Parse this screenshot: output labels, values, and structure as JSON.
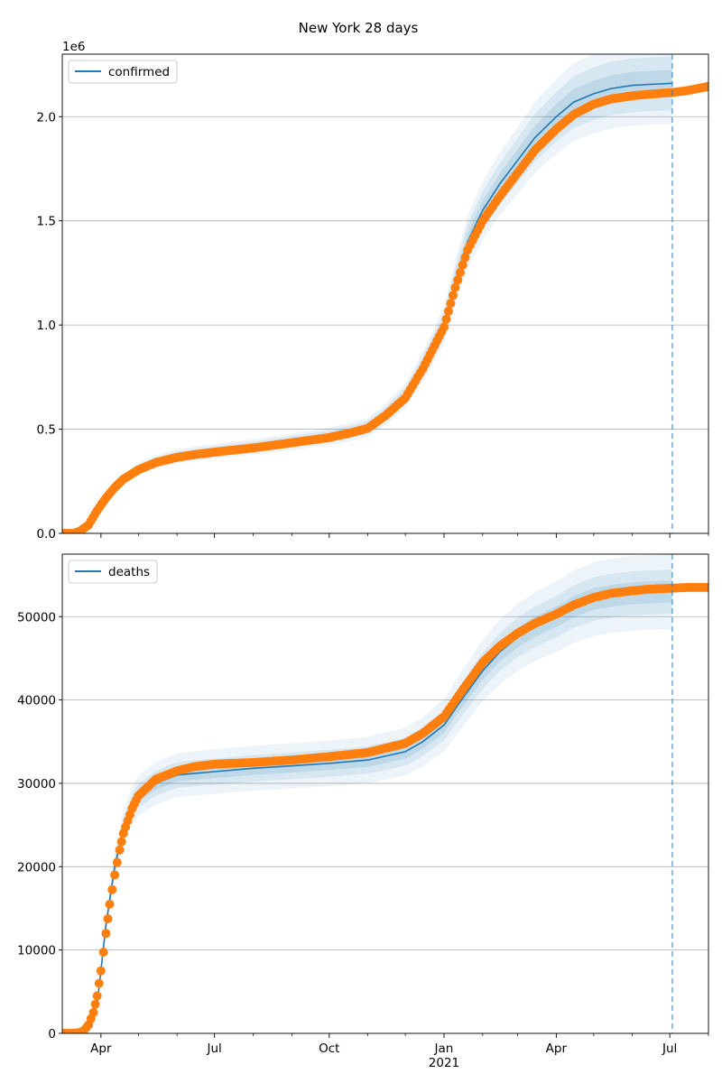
{
  "title": "New York 28 days",
  "colors": {
    "model": "#1f77b4",
    "observed": "#ff7f0e",
    "band": "#1f77b4",
    "grid": "#b0b0b0",
    "cutoff": "#1f77b4"
  },
  "x_axis": {
    "ticks": [
      {
        "date": "2020-04-01",
        "label": "Apr",
        "sub": ""
      },
      {
        "date": "2020-07-01",
        "label": "Jul",
        "sub": ""
      },
      {
        "date": "2020-10-01",
        "label": "Oct",
        "sub": ""
      },
      {
        "date": "2021-01-01",
        "label": "Jan",
        "sub": "2021"
      },
      {
        "date": "2021-04-01",
        "label": "Apr",
        "sub": ""
      },
      {
        "date": "2021-07-01",
        "label": "Jul",
        "sub": ""
      }
    ],
    "minor_ticks": [
      "2020-05-01",
      "2020-06-01",
      "2020-08-01",
      "2020-09-01",
      "2020-11-01",
      "2020-12-01",
      "2021-02-01",
      "2021-03-01",
      "2021-05-01",
      "2021-06-01",
      "2021-08-01"
    ],
    "range": [
      "2020-03-01",
      "2021-08-01"
    ],
    "cutoff_date": "2021-07-03"
  },
  "chart_data": [
    {
      "type": "line",
      "legend": "confirmed",
      "legend_position": "top-left",
      "grid": "y",
      "ylim": [
        0,
        2300000
      ],
      "y_offset_label": "1e6",
      "yticks": [
        0,
        500000,
        1000000,
        1500000,
        2000000
      ],
      "ytick_labels": [
        "0.0",
        "0.5",
        "1.0",
        "1.5",
        "2.0"
      ],
      "model": {
        "x": [
          "2020-03-01",
          "2020-03-10",
          "2020-03-15",
          "2020-03-22",
          "2020-03-29",
          "2020-04-05",
          "2020-04-12",
          "2020-04-19",
          "2020-05-01",
          "2020-05-15",
          "2020-06-01",
          "2020-06-15",
          "2020-07-01",
          "2020-08-01",
          "2020-09-01",
          "2020-10-01",
          "2020-10-20",
          "2020-11-01",
          "2020-11-15",
          "2020-12-01",
          "2020-12-15",
          "2021-01-01",
          "2021-01-10",
          "2021-01-20",
          "2021-02-01",
          "2021-02-15",
          "2021-03-01",
          "2021-03-15",
          "2021-04-01",
          "2021-04-15",
          "2021-05-01",
          "2021-05-15",
          "2021-06-01",
          "2021-06-15",
          "2021-07-03"
        ],
        "y": [
          0,
          0,
          10000,
          40000,
          110000,
          170000,
          220000,
          260000,
          310000,
          345000,
          370000,
          382000,
          393000,
          415000,
          440000,
          465000,
          490000,
          510000,
          570000,
          660000,
          800000,
          1000000,
          1200000,
          1400000,
          1550000,
          1680000,
          1790000,
          1900000,
          2000000,
          2070000,
          2110000,
          2135000,
          2150000,
          2155000,
          2160000
        ],
        "bands": [
          {
            "spread": 0.03,
            "opacity": 0.13
          },
          {
            "spread": 0.06,
            "opacity": 0.1
          },
          {
            "spread": 0.09,
            "opacity": 0.08
          }
        ]
      },
      "observed": {
        "x": [
          "2020-03-01",
          "2020-03-10",
          "2020-03-15",
          "2020-03-22",
          "2020-03-29",
          "2020-04-05",
          "2020-04-12",
          "2020-04-19",
          "2020-05-01",
          "2020-05-15",
          "2020-06-01",
          "2020-06-15",
          "2020-07-01",
          "2020-08-01",
          "2020-09-01",
          "2020-10-01",
          "2020-10-20",
          "2020-11-01",
          "2020-11-15",
          "2020-12-01",
          "2020-12-15",
          "2021-01-01",
          "2021-01-10",
          "2021-01-20",
          "2021-02-01",
          "2021-02-15",
          "2021-03-01",
          "2021-03-15",
          "2021-04-01",
          "2021-04-15",
          "2021-05-01",
          "2021-05-15",
          "2021-06-01",
          "2021-06-15",
          "2021-07-01",
          "2021-07-15",
          "2021-08-01"
        ],
        "y": [
          0,
          0,
          10000,
          40000,
          110000,
          170000,
          220000,
          260000,
          305000,
          340000,
          365000,
          378000,
          390000,
          410000,
          435000,
          460000,
          485000,
          505000,
          565000,
          650000,
          790000,
          990000,
          1180000,
          1360000,
          1500000,
          1620000,
          1730000,
          1840000,
          1940000,
          2010000,
          2060000,
          2085000,
          2100000,
          2108000,
          2115000,
          2125000,
          2145000
        ]
      }
    },
    {
      "type": "line",
      "legend": "deaths",
      "legend_position": "top-left",
      "grid": "y",
      "ylim": [
        0,
        57500
      ],
      "yticks": [
        0,
        10000,
        20000,
        30000,
        40000,
        50000
      ],
      "ytick_labels": [
        "0",
        "10000",
        "20000",
        "30000",
        "40000",
        "50000"
      ],
      "model": {
        "x": [
          "2020-03-01",
          "2020-03-10",
          "2020-03-15",
          "2020-03-22",
          "2020-03-29",
          "2020-04-01",
          "2020-04-05",
          "2020-04-12",
          "2020-04-19",
          "2020-04-26",
          "2020-05-01",
          "2020-05-15",
          "2020-06-01",
          "2020-06-15",
          "2020-07-01",
          "2020-08-01",
          "2020-09-01",
          "2020-10-01",
          "2020-11-01",
          "2020-12-01",
          "2020-12-15",
          "2021-01-01",
          "2021-01-15",
          "2021-02-01",
          "2021-02-15",
          "2021-03-01",
          "2021-03-15",
          "2021-04-01",
          "2021-04-15",
          "2021-05-01",
          "2021-05-15",
          "2021-06-01",
          "2021-06-15",
          "2021-07-03"
        ],
        "y": [
          0,
          0,
          100,
          700,
          3500,
          7500,
          13000,
          20000,
          24500,
          27300,
          28500,
          30000,
          31000,
          31200,
          31400,
          31800,
          32100,
          32400,
          32800,
          33800,
          35000,
          37000,
          40000,
          43500,
          45800,
          47500,
          48800,
          50000,
          51200,
          52100,
          52500,
          52800,
          52900,
          53000
        ],
        "bands": [
          {
            "spread": 0.025,
            "opacity": 0.13
          },
          {
            "spread": 0.05,
            "opacity": 0.1
          },
          {
            "spread": 0.085,
            "opacity": 0.08
          }
        ]
      },
      "observed": {
        "x": [
          "2020-03-01",
          "2020-03-10",
          "2020-03-15",
          "2020-03-18",
          "2020-03-22",
          "2020-03-26",
          "2020-03-29",
          "2020-04-01",
          "2020-04-05",
          "2020-04-08",
          "2020-04-12",
          "2020-04-16",
          "2020-04-19",
          "2020-04-26",
          "2020-05-01",
          "2020-05-15",
          "2020-06-01",
          "2020-06-15",
          "2020-07-01",
          "2020-08-01",
          "2020-09-01",
          "2020-10-01",
          "2020-11-01",
          "2020-12-01",
          "2020-12-15",
          "2021-01-01",
          "2021-01-15",
          "2021-02-01",
          "2021-02-15",
          "2021-03-01",
          "2021-03-15",
          "2021-04-01",
          "2021-04-15",
          "2021-05-01",
          "2021-05-15",
          "2021-06-01",
          "2021-06-15",
          "2021-07-01",
          "2021-07-15",
          "2021-08-01"
        ],
        "y": [
          0,
          0,
          100,
          300,
          1000,
          2500,
          4500,
          7500,
          12000,
          15500,
          19000,
          22000,
          24000,
          27000,
          28500,
          30500,
          31500,
          32000,
          32300,
          32500,
          32800,
          33200,
          33700,
          34800,
          36000,
          38000,
          41000,
          44500,
          46500,
          48000,
          49200,
          50300,
          51400,
          52300,
          52800,
          53100,
          53300,
          53400,
          53500,
          53500
        ]
      }
    }
  ]
}
